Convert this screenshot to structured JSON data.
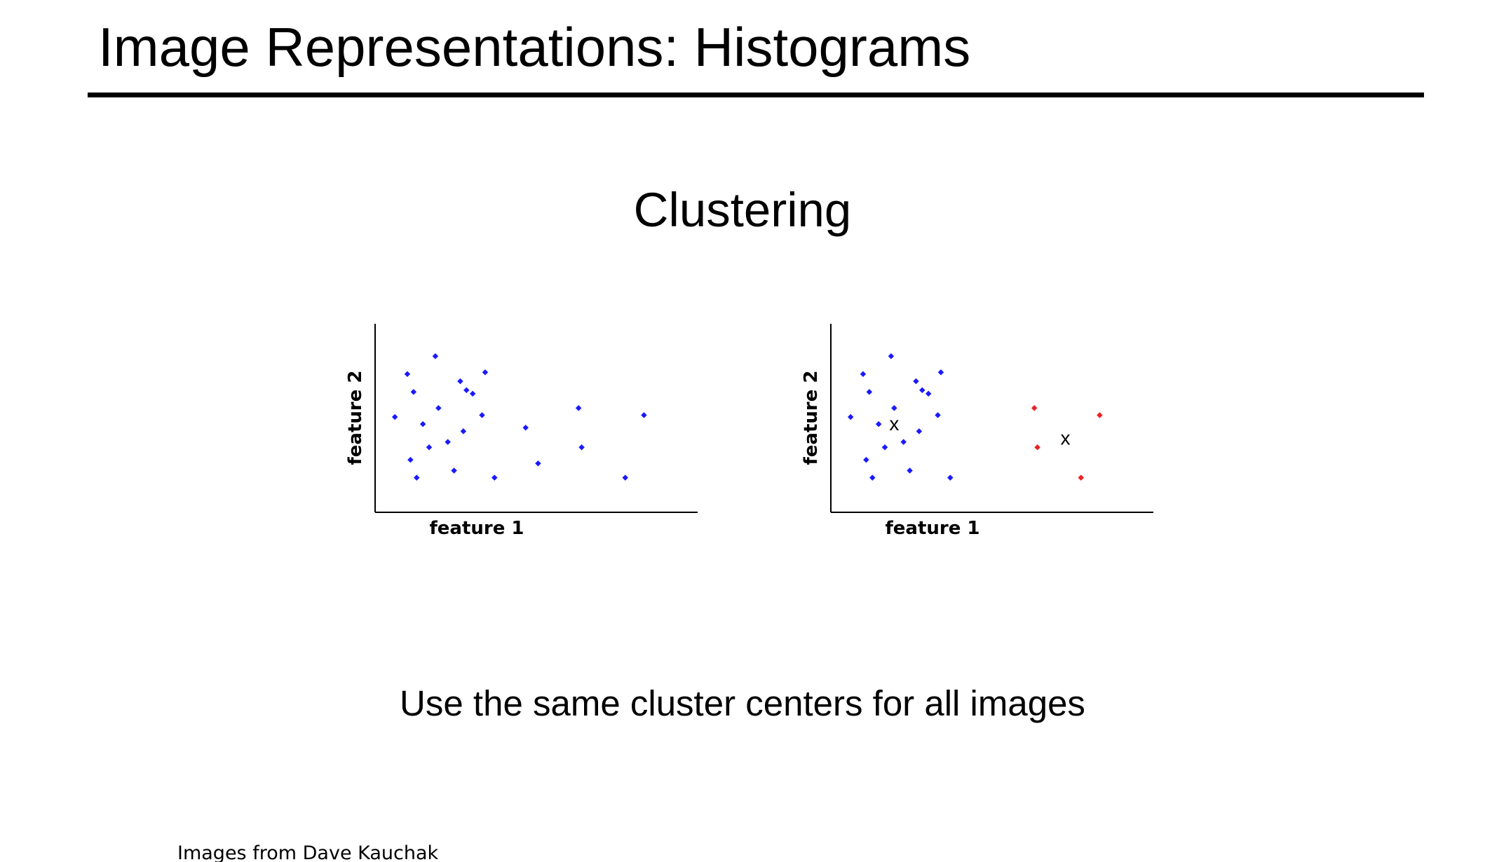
{
  "slide": {
    "title": "Image Representations: Histograms",
    "heading": "Clustering",
    "caption": "Use the same cluster centers for all images",
    "credit": "Images from Dave Kauchak"
  },
  "colors": {
    "text": "#000000",
    "unclustered_points": "#1a1aff",
    "cluster_1_points": "#1a1aff",
    "cluster_2_points": "#ee2222",
    "center_marker": "#000000"
  },
  "chart_data": [
    {
      "type": "scatter",
      "xlabel": "feature 1",
      "ylabel": "feature 2",
      "xlim": [
        0,
        100
      ],
      "ylim": [
        0,
        100
      ],
      "grid": false,
      "series": [
        {
          "color": "#1a1aff",
          "points": [
            [
              18,
              85
            ],
            [
              9,
              75
            ],
            [
              34,
              76
            ],
            [
              26,
              71
            ],
            [
              11,
              65
            ],
            [
              28,
              66
            ],
            [
              30,
              64
            ],
            [
              19,
              56
            ],
            [
              5,
              51
            ],
            [
              33,
              52
            ],
            [
              14,
              47
            ],
            [
              27,
              43
            ],
            [
              47,
              45
            ],
            [
              64,
              56
            ],
            [
              85,
              52
            ],
            [
              22,
              37
            ],
            [
              16,
              34
            ],
            [
              65,
              34
            ],
            [
              10,
              27
            ],
            [
              51,
              25
            ],
            [
              24,
              21
            ],
            [
              12,
              17
            ],
            [
              37,
              17
            ],
            [
              79,
              17
            ]
          ]
        }
      ]
    },
    {
      "type": "scatter",
      "xlabel": "feature 1",
      "ylabel": "feature 2",
      "xlim": [
        0,
        100
      ],
      "ylim": [
        0,
        100
      ],
      "grid": false,
      "series": [
        {
          "color": "#1a1aff",
          "points": [
            [
              18,
              85
            ],
            [
              9,
              75
            ],
            [
              34,
              76
            ],
            [
              26,
              71
            ],
            [
              11,
              65
            ],
            [
              28,
              66
            ],
            [
              30,
              64
            ],
            [
              19,
              56
            ],
            [
              5,
              51
            ],
            [
              33,
              52
            ],
            [
              14,
              47
            ],
            [
              27,
              43
            ],
            [
              22,
              37
            ],
            [
              16,
              34
            ],
            [
              10,
              27
            ],
            [
              24,
              21
            ],
            [
              12,
              17
            ],
            [
              37,
              17
            ]
          ]
        },
        {
          "color": "#ee2222",
          "points": [
            [
              64,
              56
            ],
            [
              85,
              52
            ],
            [
              65,
              34
            ],
            [
              79,
              17
            ]
          ]
        }
      ],
      "centers": [
        {
          "label": "x",
          "x": 19,
          "y": 47
        },
        {
          "label": "x",
          "x": 74,
          "y": 39
        }
      ]
    }
  ]
}
